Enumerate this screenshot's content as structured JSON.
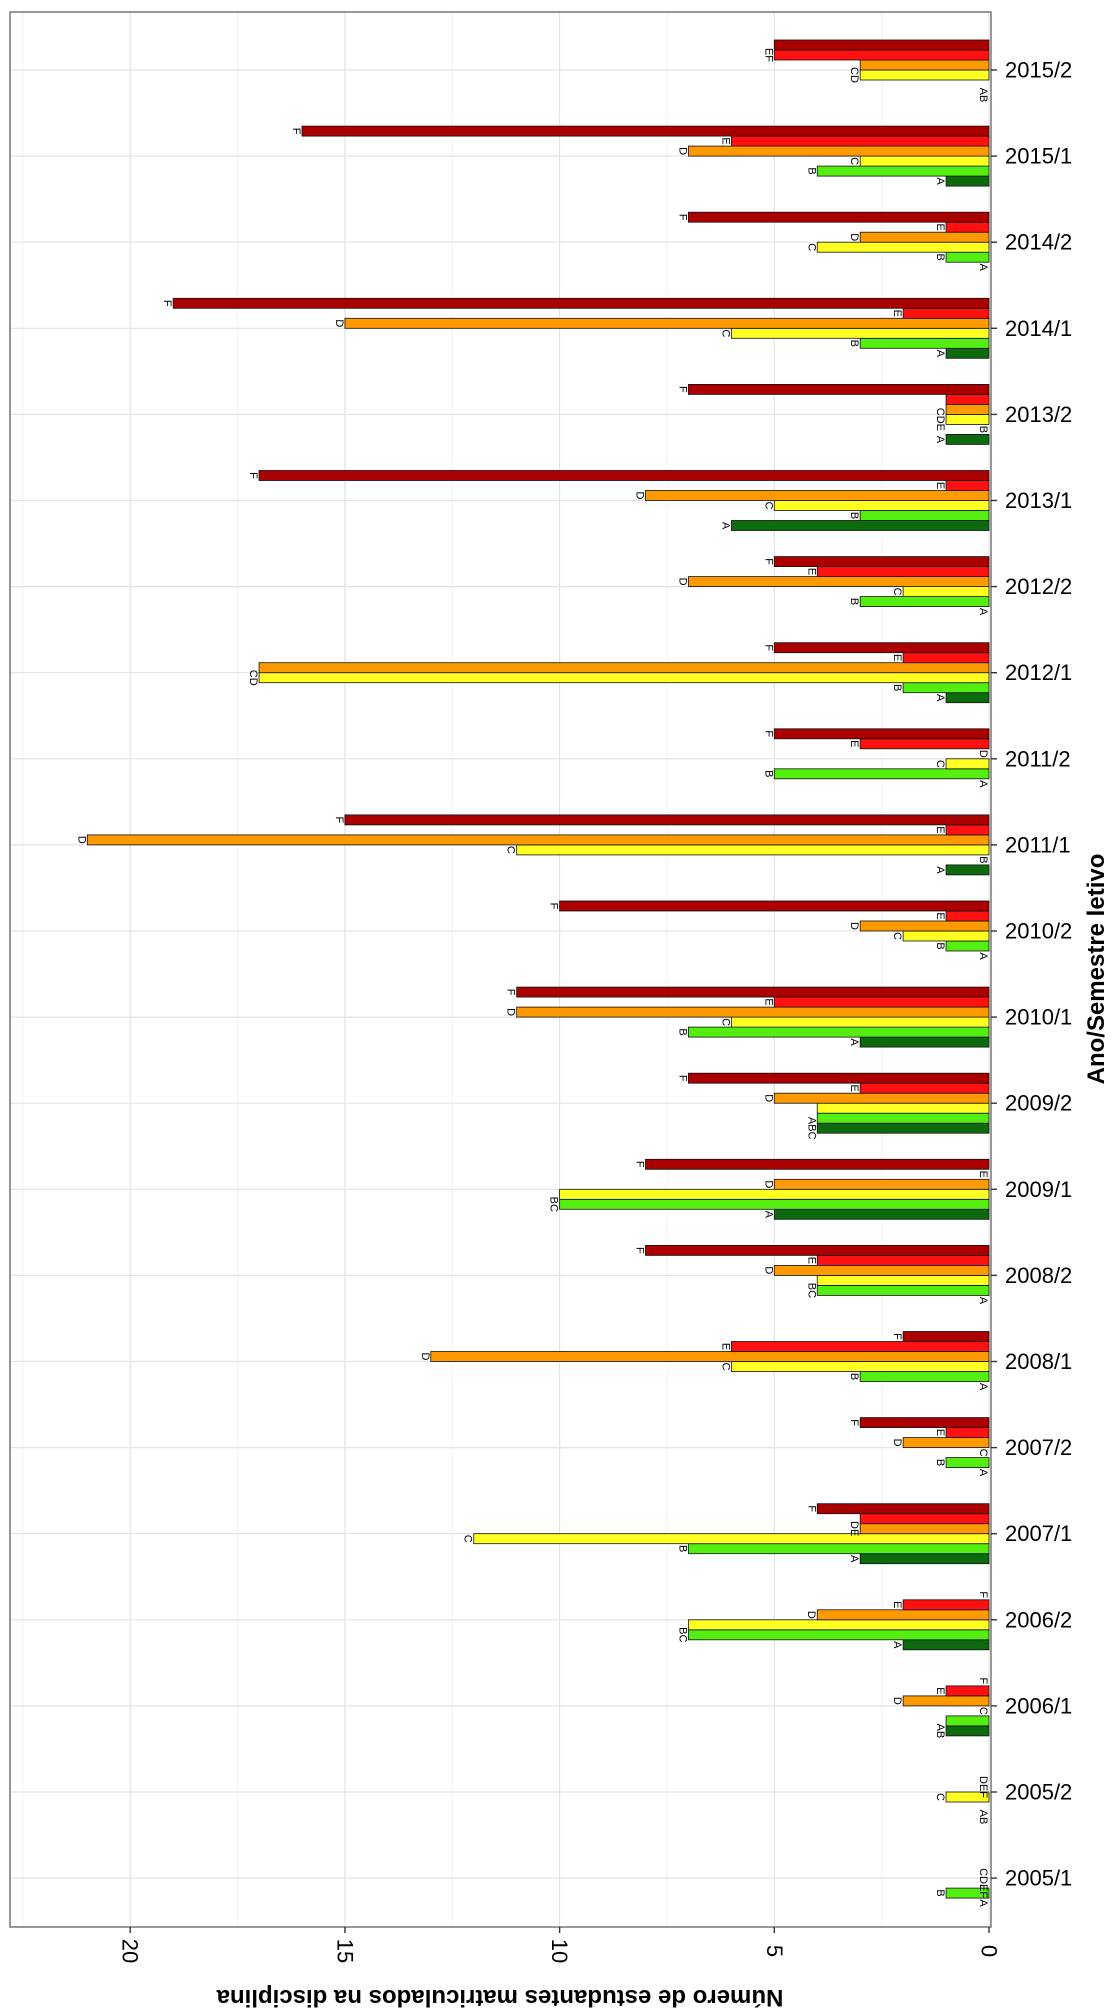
{
  "chart_data": {
    "type": "bar",
    "orientation": "horizontal",
    "xlabel": "Ano/Semestre letivo",
    "ylabel": "Número de estudantes matriculados na disciplina",
    "ylim": [
      0,
      22.8
    ],
    "yticks": [
      "0",
      "5",
      "10",
      "15",
      "20"
    ],
    "grid": true,
    "legend": "none",
    "series": [
      {
        "name": "A",
        "color": "#0d6b0d",
        "values": [
          0,
          0,
          1,
          2,
          3,
          0,
          0,
          0,
          5,
          4,
          3,
          0,
          1,
          0,
          1,
          0,
          6,
          1,
          1,
          0,
          1,
          0
        ]
      },
      {
        "name": "B",
        "color": "#55ee11",
        "values": [
          1,
          0,
          1,
          7,
          7,
          1,
          3,
          4,
          10,
          4,
          7,
          1,
          0,
          5,
          2,
          3,
          3,
          0,
          3,
          1,
          4,
          0
        ]
      },
      {
        "name": "C",
        "color": "#ffff22",
        "values": [
          0,
          1,
          0,
          7,
          12,
          0,
          6,
          4,
          10,
          4,
          6,
          2,
          11,
          1,
          17,
          2,
          5,
          1,
          6,
          4,
          3,
          3
        ]
      },
      {
        "name": "D",
        "color": "#ff9900",
        "values": [
          0,
          0,
          2,
          4,
          3,
          2,
          13,
          5,
          5,
          5,
          11,
          3,
          21,
          0,
          17,
          7,
          8,
          1,
          15,
          3,
          7,
          3
        ]
      },
      {
        "name": "E",
        "color": "#ff1111",
        "values": [
          0,
          0,
          1,
          2,
          3,
          1,
          6,
          4,
          0,
          3,
          5,
          1,
          1,
          3,
          2,
          4,
          1,
          1,
          2,
          1,
          6,
          5
        ]
      },
      {
        "name": "F",
        "color": "#aa0000",
        "values": [
          0,
          0,
          0,
          0,
          4,
          3,
          2,
          8,
          8,
          7,
          11,
          10,
          15,
          5,
          5,
          5,
          17,
          7,
          19,
          7,
          16,
          5
        ]
      }
    ],
    "categories": [
      "2005/1",
      "2005/2",
      "2006/1",
      "2006/2",
      "2007/1",
      "2007/2",
      "2008/1",
      "2008/2",
      "2009/1",
      "2009/2",
      "2010/1",
      "2010/2",
      "2011/1",
      "2011/2",
      "2012/1",
      "2012/2",
      "2013/1",
      "2013/2",
      "2014/1",
      "2014/2",
      "2015/1",
      "2015/2"
    ],
    "bar_labels": [
      [
        "A",
        "B",
        "CDEF",
        "",
        "",
        ""
      ],
      [
        "AB",
        "",
        "C",
        "DEF",
        "",
        ""
      ],
      [
        "AB",
        "",
        "C",
        "D",
        "E",
        "F"
      ],
      [
        "A",
        "BC",
        "",
        "D",
        "E",
        "F"
      ],
      [
        "A",
        "B",
        "C",
        "DE",
        "",
        "F"
      ],
      [
        "A",
        "B",
        "C",
        "D",
        "E",
        "F"
      ],
      [
        "A",
        "B",
        "C",
        "D",
        "E",
        "F"
      ],
      [
        "A",
        "BC",
        "",
        "D",
        "E",
        "F"
      ],
      [
        "A",
        "BC",
        "",
        "D",
        "E",
        "F"
      ],
      [
        "ABC",
        "",
        "",
        "D",
        "E",
        "F"
      ],
      [
        "A",
        "B",
        "C",
        "D",
        "E",
        "F"
      ],
      [
        "A",
        "B",
        "C",
        "D",
        "E",
        "F"
      ],
      [
        "A",
        "B",
        "C",
        "D",
        "E",
        "F"
      ],
      [
        "A",
        "B",
        "C",
        "D",
        "E",
        "F"
      ],
      [
        "A",
        "B",
        "CD",
        "",
        "E",
        "F"
      ],
      [
        "A",
        "B",
        "C",
        "D",
        "E",
        "F"
      ],
      [
        "A",
        "B",
        "C",
        "D",
        "E",
        "F"
      ],
      [
        "A",
        "B",
        "CDE",
        "",
        "",
        "F"
      ],
      [
        "A",
        "B",
        "C",
        "D",
        "E",
        "F"
      ],
      [
        "A",
        "B",
        "C",
        "D",
        "E",
        "F"
      ],
      [
        "A",
        "B",
        "C",
        "D",
        "E",
        "F"
      ],
      [
        "AB",
        "",
        "CD",
        "",
        "EF",
        ""
      ]
    ]
  }
}
